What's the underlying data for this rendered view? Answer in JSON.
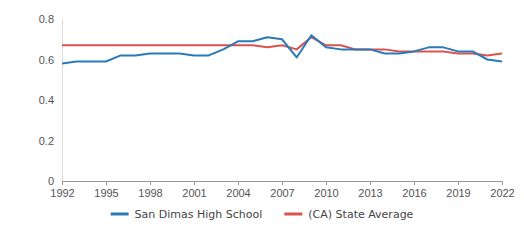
{
  "chart_data": {
    "type": "line",
    "x": [
      1992,
      1993,
      1994,
      1995,
      1996,
      1997,
      1998,
      1999,
      2000,
      2001,
      2002,
      2003,
      2004,
      2005,
      2006,
      2007,
      2008,
      2009,
      2010,
      2011,
      2012,
      2013,
      2014,
      2015,
      2016,
      2017,
      2018,
      2019,
      2020,
      2021,
      2022
    ],
    "series": [
      {
        "name": "San Dimas High School",
        "color": "#2a7ab8",
        "values": [
          0.58,
          0.59,
          0.59,
          0.59,
          0.62,
          0.62,
          0.63,
          0.63,
          0.63,
          0.62,
          0.62,
          0.65,
          0.69,
          0.69,
          0.71,
          0.7,
          0.61,
          0.72,
          0.66,
          0.65,
          0.65,
          0.65,
          0.63,
          0.63,
          0.64,
          0.66,
          0.66,
          0.64,
          0.64,
          0.6,
          0.59
        ]
      },
      {
        "name": "(CA) State Average",
        "color": "#d9534f",
        "values": [
          0.67,
          0.67,
          0.67,
          0.67,
          0.67,
          0.67,
          0.67,
          0.67,
          0.67,
          0.67,
          0.67,
          0.67,
          0.67,
          0.67,
          0.66,
          0.67,
          0.65,
          0.71,
          0.67,
          0.67,
          0.65,
          0.65,
          0.65,
          0.64,
          0.64,
          0.64,
          0.64,
          0.63,
          0.63,
          0.62,
          0.63
        ]
      }
    ],
    "xlim": [
      1992,
      2022
    ],
    "xticks": [
      1992,
      1995,
      1998,
      2001,
      2004,
      2007,
      2010,
      2013,
      2016,
      2019,
      2022
    ],
    "ylim": [
      0,
      0.8
    ],
    "yticks": [
      0,
      0.2,
      0.4,
      0.6,
      0.8
    ],
    "grid": false,
    "legend": "bottom"
  }
}
